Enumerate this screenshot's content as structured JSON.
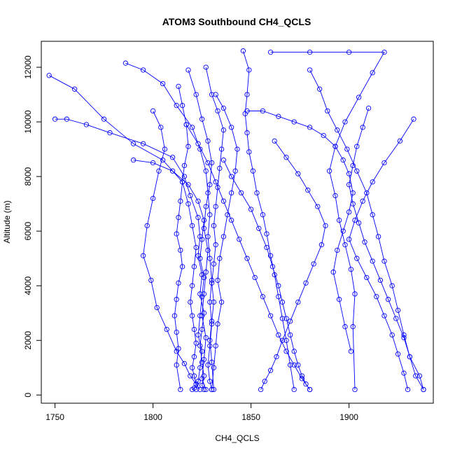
{
  "chart_data": {
    "type": "line",
    "title": "ATOM3 Southbound CH4_QCLS",
    "xlabel": "CH4_QCLS",
    "ylabel": "Altitude (m)",
    "xlim": [
      1743,
      1943
    ],
    "ylim": [
      -300,
      12950
    ],
    "x_ticks": [
      1750,
      1800,
      1850,
      1900
    ],
    "y_ticks": [
      0,
      2000,
      4000,
      6000,
      8000,
      10000,
      12000
    ],
    "grid": false,
    "legend": "none",
    "marker": "open-circle",
    "series_color": "#0000ff",
    "series": [
      {
        "x": [
          1747,
          1760,
          1775,
          1790,
          1805,
          1815,
          1818,
          1820,
          1822,
          1821,
          1820,
          1819,
          1820,
          1821,
          1822,
          1821,
          1820,
          1821,
          1822,
          1821,
          1820
        ],
        "y": [
          11700,
          11200,
          10100,
          9200,
          8600,
          7800,
          7000,
          6200,
          5400,
          4700,
          4000,
          3400,
          2900,
          2400,
          1900,
          1400,
          1000,
          700,
          400,
          250,
          200
        ]
      },
      {
        "x": [
          1750,
          1756,
          1766,
          1778,
          1795,
          1810,
          1816,
          1819,
          1823,
          1824,
          1823,
          1825,
          1824,
          1826,
          1825,
          1824,
          1825,
          1826,
          1825,
          1826
        ],
        "y": [
          10100,
          10100,
          9900,
          9600,
          9200,
          8700,
          8000,
          7300,
          6500,
          5800,
          5100,
          4400,
          3700,
          3000,
          2400,
          1800,
          1200,
          700,
          350,
          200
        ]
      },
      {
        "x": [
          1786,
          1795,
          1805,
          1812,
          1820,
          1824,
          1827,
          1828,
          1829,
          1828,
          1829,
          1830,
          1829,
          1830,
          1829,
          1828,
          1829,
          1830
        ],
        "y": [
          12150,
          11900,
          11400,
          10600,
          9800,
          9000,
          8200,
          7400,
          6600,
          5800,
          5000,
          4200,
          3400,
          2600,
          1800,
          1100,
          500,
          200
        ]
      },
      {
        "x": [
          1800,
          1804,
          1806,
          1803,
          1800,
          1797,
          1795,
          1799,
          1802,
          1807,
          1812,
          1816,
          1819,
          1822,
          1824
        ],
        "y": [
          10400,
          9800,
          9000,
          8200,
          7200,
          6200,
          5100,
          4200,
          3200,
          2400,
          1600,
          1150,
          700,
          400,
          200
        ]
      },
      {
        "x": [
          1813,
          1815,
          1817,
          1818,
          1816,
          1815,
          1814,
          1813,
          1812,
          1814,
          1815,
          1813,
          1812,
          1811,
          1812,
          1813,
          1812,
          1814
        ],
        "y": [
          11300,
          10600,
          9900,
          9100,
          8400,
          7800,
          7100,
          6500,
          5900,
          5300,
          4700,
          4100,
          3500,
          2900,
          2300,
          1700,
          1100,
          200
        ]
      },
      {
        "x": [
          1827,
          1830,
          1833,
          1836,
          1835,
          1834,
          1833,
          1832,
          1831,
          1832,
          1831,
          1830,
          1831,
          1830,
          1829,
          1830,
          1831
        ],
        "y": [
          12000,
          11000,
          10400,
          9700,
          9000,
          8300,
          7600,
          6900,
          6200,
          5500,
          4800,
          4100,
          3400,
          2700,
          2000,
          1200,
          200
        ]
      },
      {
        "x": [
          1832,
          1836,
          1840,
          1843,
          1842,
          1840,
          1838,
          1836,
          1834,
          1833,
          1835,
          1833,
          1832,
          1831,
          1830
        ],
        "y": [
          11000,
          10500,
          9800,
          9000,
          8200,
          7400,
          6600,
          5800,
          5000,
          4200,
          3400,
          2600,
          1800,
          1000,
          200
        ]
      },
      {
        "x": [
          1846,
          1849,
          1848,
          1847,
          1848,
          1849,
          1851,
          1853,
          1856,
          1858,
          1860,
          1862,
          1864,
          1866,
          1868,
          1870,
          1872
        ],
        "y": [
          12600,
          11900,
          11000,
          10300,
          9600,
          8900,
          8200,
          7400,
          6600,
          5900,
          5100,
          4400,
          3600,
          2800,
          2000,
          1100,
          200
        ]
      },
      {
        "x": [
          1860,
          1880,
          1900,
          1918,
          1912,
          1905,
          1898,
          1893,
          1890,
          1893,
          1895,
          1898,
          1901,
          1903,
          1902,
          1903
        ],
        "y": [
          12550,
          12550,
          12550,
          12550,
          11800,
          10900,
          10000,
          9100,
          8200,
          7300,
          6400,
          5500,
          4600,
          3700,
          2500,
          200
        ]
      },
      {
        "x": [
          1848,
          1856,
          1864,
          1872,
          1880,
          1887,
          1893,
          1897,
          1900,
          1902,
          1900,
          1897,
          1894,
          1892,
          1895,
          1898,
          1901
        ],
        "y": [
          10400,
          10400,
          10200,
          10000,
          9800,
          9500,
          9100,
          8600,
          8100,
          7400,
          6700,
          6000,
          5300,
          4500,
          3500,
          2500,
          1600
        ]
      },
      {
        "x": [
          1880,
          1885,
          1889,
          1894,
          1899,
          1904,
          1909,
          1912,
          1915,
          1918,
          1922,
          1925,
          1928,
          1931,
          1934,
          1938
        ],
        "y": [
          11900,
          11200,
          10400,
          9700,
          9000,
          8200,
          7400,
          6600,
          5800,
          4900,
          4000,
          3100,
          2200,
          1400,
          700,
          200
        ]
      },
      {
        "x": [
          1910,
          1907,
          1904,
          1902,
          1900,
          1902,
          1905,
          1908,
          1912,
          1916,
          1920,
          1924,
          1928,
          1931,
          1936,
          1938
        ],
        "y": [
          10500,
          9800,
          9100,
          8400,
          7700,
          7000,
          6300,
          5600,
          4900,
          4200,
          3500,
          2800,
          2100,
          1400,
          700,
          200
        ]
      },
      {
        "x": [
          1933,
          1926,
          1918,
          1912,
          1907,
          1903,
          1900,
          1904,
          1909,
          1914,
          1918,
          1922,
          1925,
          1928,
          1930
        ],
        "y": [
          10100,
          9300,
          8500,
          7800,
          7100,
          6400,
          5700,
          5000,
          4300,
          3600,
          2900,
          2200,
          1500,
          800,
          200
        ]
      },
      {
        "x": [
          1862,
          1868,
          1874,
          1879,
          1884,
          1888,
          1886,
          1882,
          1878,
          1874,
          1870,
          1866,
          1863,
          1860,
          1857,
          1855
        ],
        "y": [
          9300,
          8700,
          8100,
          7500,
          6900,
          6200,
          5500,
          4800,
          4100,
          3400,
          2700,
          2000,
          1400,
          900,
          500,
          200
        ]
      },
      {
        "x": [
          1836,
          1840,
          1845,
          1850,
          1854,
          1858,
          1861,
          1864,
          1866,
          1868,
          1870,
          1872,
          1874,
          1876,
          1878,
          1880
        ],
        "y": [
          8600,
          8000,
          7400,
          6800,
          6100,
          5400,
          4700,
          4000,
          3400,
          2800,
          2200,
          1600,
          1100,
          700,
          400,
          200
        ]
      },
      {
        "x": [
          1817,
          1823,
          1828,
          1832,
          1836,
          1840,
          1844,
          1848,
          1852,
          1856,
          1860,
          1864,
          1868,
          1872,
          1876,
          1880
        ],
        "y": [
          9900,
          9200,
          8500,
          7800,
          7100,
          6400,
          5700,
          5000,
          4300,
          3600,
          2900,
          2200,
          1600,
          1100,
          600,
          200
        ]
      },
      {
        "x": [
          1790,
          1800,
          1810,
          1818,
          1823,
          1826,
          1825,
          1824,
          1826,
          1825,
          1824,
          1823,
          1825,
          1824,
          1823,
          1822
        ],
        "y": [
          8600,
          8500,
          8200,
          7700,
          7100,
          6400,
          5700,
          5000,
          4300,
          3600,
          2900,
          2200,
          1600,
          1000,
          500,
          200
        ]
      },
      {
        "x": [
          1818,
          1822,
          1825,
          1828,
          1830,
          1829,
          1827,
          1826,
          1828,
          1827,
          1826,
          1825,
          1827,
          1826,
          1825,
          1827
        ],
        "y": [
          11900,
          11000,
          10100,
          9300,
          8500,
          7700,
          6900,
          6100,
          5300,
          4500,
          3700,
          2900,
          2100,
          1300,
          600,
          200
        ]
      }
    ]
  }
}
